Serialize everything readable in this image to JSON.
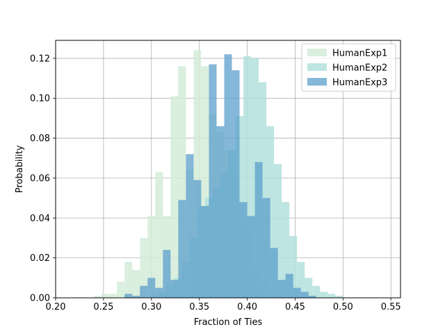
{
  "chart_data": {
    "type": "bar",
    "xlabel": "Fraction of Ties",
    "ylabel": "Probability",
    "xlim": [
      0.2,
      0.56
    ],
    "ylim": [
      0,
      0.129
    ],
    "grid": true,
    "legend_position": "top-right",
    "xticks": [
      "0.20",
      "0.25",
      "0.30",
      "0.35",
      "0.40",
      "0.45",
      "0.50",
      "0.55"
    ],
    "yticks": [
      "0.00",
      "0.02",
      "0.04",
      "0.06",
      "0.08",
      "0.10",
      "0.12"
    ],
    "series": [
      {
        "name": "HumanExp1",
        "color": "#d4ecd8",
        "opacity": 0.85,
        "bins": [
          [
            0.24,
            0.248,
            0.001
          ],
          [
            0.248,
            0.256,
            0.002
          ],
          [
            0.256,
            0.264,
            0.002
          ],
          [
            0.264,
            0.272,
            0.008
          ],
          [
            0.272,
            0.28,
            0.018
          ],
          [
            0.28,
            0.288,
            0.014
          ],
          [
            0.288,
            0.296,
            0.03
          ],
          [
            0.296,
            0.304,
            0.041
          ],
          [
            0.304,
            0.312,
            0.063
          ],
          [
            0.312,
            0.32,
            0.041
          ],
          [
            0.32,
            0.328,
            0.101
          ],
          [
            0.328,
            0.336,
            0.116
          ],
          [
            0.336,
            0.344,
            0.064
          ],
          [
            0.344,
            0.352,
            0.124
          ],
          [
            0.352,
            0.36,
            0.116
          ],
          [
            0.36,
            0.368,
            0.092
          ],
          [
            0.368,
            0.376,
            0.083
          ],
          [
            0.376,
            0.384,
            0.074
          ],
          [
            0.384,
            0.392,
            0.058
          ],
          [
            0.392,
            0.4,
            0.04
          ],
          [
            0.4,
            0.408,
            0.031
          ],
          [
            0.408,
            0.416,
            0.015
          ],
          [
            0.416,
            0.424,
            0.007
          ],
          [
            0.424,
            0.432,
            0.004
          ],
          [
            0.432,
            0.44,
            0.002
          ]
        ]
      },
      {
        "name": "HumanExp2",
        "color": "#b3e1dc",
        "opacity": 0.85,
        "bins": [
          [
            0.3,
            0.308,
            0.001
          ],
          [
            0.308,
            0.316,
            0.003
          ],
          [
            0.316,
            0.324,
            0.006
          ],
          [
            0.324,
            0.332,
            0.01
          ],
          [
            0.332,
            0.34,
            0.018
          ],
          [
            0.34,
            0.348,
            0.03
          ],
          [
            0.348,
            0.356,
            0.046
          ],
          [
            0.356,
            0.364,
            0.05
          ],
          [
            0.364,
            0.372,
            0.055
          ],
          [
            0.372,
            0.38,
            0.062
          ],
          [
            0.38,
            0.388,
            0.074
          ],
          [
            0.388,
            0.396,
            0.091
          ],
          [
            0.396,
            0.404,
            0.121
          ],
          [
            0.404,
            0.412,
            0.12
          ],
          [
            0.412,
            0.42,
            0.108
          ],
          [
            0.42,
            0.428,
            0.086
          ],
          [
            0.428,
            0.436,
            0.067
          ],
          [
            0.436,
            0.444,
            0.048
          ],
          [
            0.444,
            0.452,
            0.031
          ],
          [
            0.452,
            0.46,
            0.018
          ],
          [
            0.46,
            0.468,
            0.01
          ],
          [
            0.468,
            0.476,
            0.006
          ],
          [
            0.476,
            0.484,
            0.003
          ],
          [
            0.484,
            0.492,
            0.002
          ],
          [
            0.492,
            0.5,
            0.001
          ]
        ]
      },
      {
        "name": "HumanExp3",
        "color": "#5b9fcb",
        "opacity": 0.75,
        "bins": [
          [
            0.272,
            0.28,
            0.002
          ],
          [
            0.28,
            0.288,
            0.001
          ],
          [
            0.288,
            0.296,
            0.006
          ],
          [
            0.296,
            0.304,
            0.01
          ],
          [
            0.304,
            0.312,
            0.005
          ],
          [
            0.312,
            0.32,
            0.024
          ],
          [
            0.32,
            0.328,
            0.009
          ],
          [
            0.328,
            0.336,
            0.049
          ],
          [
            0.336,
            0.344,
            0.072
          ],
          [
            0.344,
            0.352,
            0.059
          ],
          [
            0.352,
            0.36,
            0.046
          ],
          [
            0.36,
            0.368,
            0.117
          ],
          [
            0.368,
            0.376,
            0.086
          ],
          [
            0.376,
            0.384,
            0.122
          ],
          [
            0.384,
            0.392,
            0.114
          ],
          [
            0.392,
            0.4,
            0.048
          ],
          [
            0.4,
            0.408,
            0.041
          ],
          [
            0.408,
            0.416,
            0.068
          ],
          [
            0.416,
            0.424,
            0.05
          ],
          [
            0.424,
            0.432,
            0.025
          ],
          [
            0.432,
            0.44,
            0.009
          ],
          [
            0.44,
            0.448,
            0.012
          ],
          [
            0.448,
            0.456,
            0.005
          ],
          [
            0.456,
            0.464,
            0.003
          ],
          [
            0.464,
            0.472,
            0.001
          ]
        ]
      }
    ]
  }
}
